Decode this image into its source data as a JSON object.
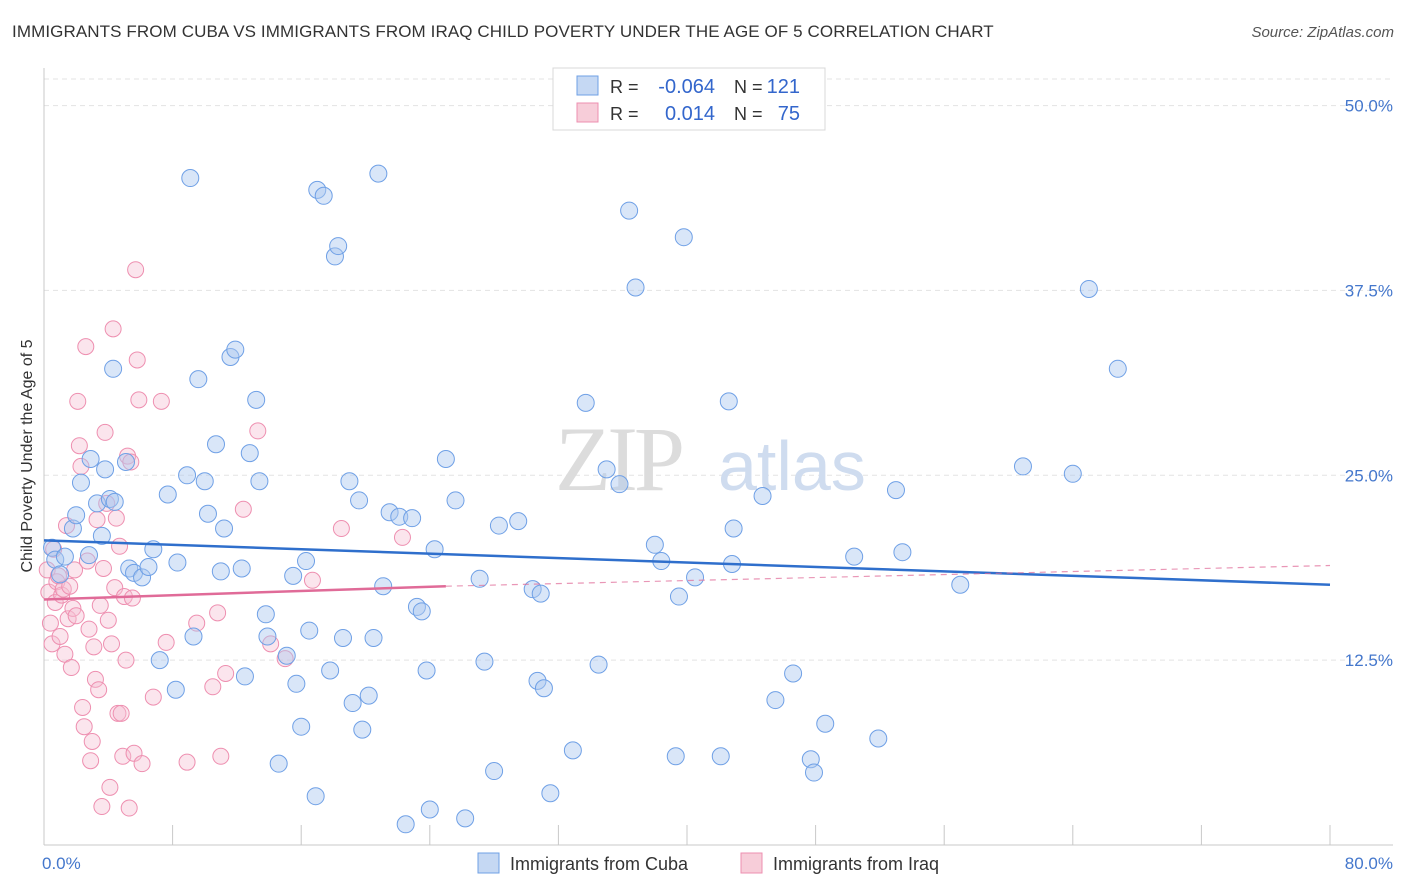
{
  "title": "IMMIGRANTS FROM CUBA VS IMMIGRANTS FROM IRAQ CHILD POVERTY UNDER THE AGE OF 5 CORRELATION CHART",
  "source": "Source: ZipAtlas.com",
  "colors": {
    "cuba": "#6fa0e6",
    "iraq": "#ee8fb0",
    "cuba_line": "#2f6fcc",
    "iraq_line": "#e06b98",
    "accent": "#3366cc"
  },
  "chart_data": {
    "type": "scatter",
    "title": "IMMIGRANTS FROM CUBA VS IMMIGRANTS FROM IRAQ CHILD POVERTY UNDER THE AGE OF 5 CORRELATION CHART",
    "xlabel": "",
    "ylabel": "Child Poverty Under the Age of 5",
    "xlim": [
      0,
      80
    ],
    "ylim": [
      0,
      52
    ],
    "x_tick_labels": [
      "0.0%",
      "80.0%"
    ],
    "y_ticks": [
      12.5,
      25.0,
      37.5,
      50.0
    ],
    "y_tick_labels": [
      "12.5%",
      "25.0%",
      "37.5%",
      "50.0%"
    ],
    "legend_position": "top-center",
    "stats": [
      {
        "r_label": "R =",
        "r_value": "-0.064",
        "n_label": "N =",
        "n_value": "121"
      },
      {
        "r_label": "R =",
        "r_value": "0.014",
        "n_label": "N =",
        "n_value": "75"
      }
    ],
    "series": [
      {
        "name": "Immigrants from Cuba",
        "trend": {
          "x": [
            0,
            80
          ],
          "y": [
            20.6,
            17.6
          ]
        },
        "points": [
          [
            0.5,
            20.1
          ],
          [
            0.7,
            19.3
          ],
          [
            1.0,
            18.3
          ],
          [
            1.3,
            19.5
          ],
          [
            1.8,
            21.4
          ],
          [
            2.0,
            22.3
          ],
          [
            2.3,
            24.5
          ],
          [
            2.8,
            19.6
          ],
          [
            2.9,
            26.1
          ],
          [
            3.3,
            23.1
          ],
          [
            3.6,
            20.9
          ],
          [
            3.8,
            25.4
          ],
          [
            4.1,
            23.4
          ],
          [
            4.3,
            32.2
          ],
          [
            4.4,
            23.2
          ],
          [
            5.1,
            25.9
          ],
          [
            5.3,
            18.7
          ],
          [
            5.6,
            18.4
          ],
          [
            6.1,
            18.1
          ],
          [
            6.5,
            18.8
          ],
          [
            6.8,
            20.0
          ],
          [
            7.2,
            12.5
          ],
          [
            7.7,
            23.7
          ],
          [
            8.2,
            10.5
          ],
          [
            8.3,
            19.1
          ],
          [
            8.9,
            25.0
          ],
          [
            9.1,
            45.1
          ],
          [
            9.3,
            14.1
          ],
          [
            9.6,
            31.5
          ],
          [
            10.0,
            24.6
          ],
          [
            10.2,
            22.4
          ],
          [
            10.7,
            27.1
          ],
          [
            11.0,
            18.5
          ],
          [
            11.2,
            21.4
          ],
          [
            11.6,
            33.0
          ],
          [
            11.9,
            33.5
          ],
          [
            12.3,
            18.7
          ],
          [
            12.5,
            11.4
          ],
          [
            12.8,
            26.5
          ],
          [
            13.2,
            30.1
          ],
          [
            13.4,
            24.6
          ],
          [
            13.8,
            15.6
          ],
          [
            13.9,
            14.1
          ],
          [
            14.6,
            5.5
          ],
          [
            15.1,
            12.8
          ],
          [
            15.5,
            18.2
          ],
          [
            15.7,
            10.9
          ],
          [
            16.0,
            8.0
          ],
          [
            16.3,
            19.2
          ],
          [
            16.5,
            14.5
          ],
          [
            16.9,
            3.3
          ],
          [
            17.0,
            44.3
          ],
          [
            17.4,
            43.9
          ],
          [
            17.8,
            11.8
          ],
          [
            18.1,
            39.8
          ],
          [
            18.3,
            40.5
          ],
          [
            18.6,
            14.0
          ],
          [
            19.0,
            24.6
          ],
          [
            19.2,
            9.6
          ],
          [
            19.6,
            23.3
          ],
          [
            19.8,
            7.8
          ],
          [
            20.2,
            10.1
          ],
          [
            20.5,
            14.0
          ],
          [
            20.8,
            45.4
          ],
          [
            21.1,
            17.5
          ],
          [
            21.5,
            22.5
          ],
          [
            22.1,
            22.2
          ],
          [
            22.5,
            1.4
          ],
          [
            22.9,
            22.1
          ],
          [
            23.2,
            16.1
          ],
          [
            23.5,
            15.8
          ],
          [
            23.8,
            11.8
          ],
          [
            24.0,
            2.4
          ],
          [
            24.3,
            20.0
          ],
          [
            25.0,
            26.1
          ],
          [
            25.6,
            23.3
          ],
          [
            26.2,
            1.8
          ],
          [
            27.1,
            18.0
          ],
          [
            27.4,
            12.4
          ],
          [
            28.0,
            5.0
          ],
          [
            28.3,
            21.6
          ],
          [
            29.5,
            21.9
          ],
          [
            30.4,
            17.3
          ],
          [
            30.7,
            11.1
          ],
          [
            30.9,
            17.0
          ],
          [
            31.1,
            10.6
          ],
          [
            31.5,
            3.5
          ],
          [
            32.9,
            6.4
          ],
          [
            33.7,
            29.9
          ],
          [
            34.5,
            12.2
          ],
          [
            35.0,
            25.4
          ],
          [
            35.8,
            24.4
          ],
          [
            36.4,
            42.9
          ],
          [
            36.8,
            37.7
          ],
          [
            38.0,
            20.3
          ],
          [
            38.4,
            19.2
          ],
          [
            39.3,
            6.0
          ],
          [
            39.5,
            16.8
          ],
          [
            39.8,
            41.1
          ],
          [
            40.5,
            18.1
          ],
          [
            42.1,
            6.0
          ],
          [
            42.6,
            30.0
          ],
          [
            42.8,
            19.0
          ],
          [
            42.9,
            21.4
          ],
          [
            44.7,
            23.6
          ],
          [
            45.5,
            9.8
          ],
          [
            46.6,
            11.6
          ],
          [
            47.7,
            5.8
          ],
          [
            47.9,
            4.9
          ],
          [
            48.6,
            8.2
          ],
          [
            50.4,
            19.5
          ],
          [
            51.9,
            7.2
          ],
          [
            53.0,
            24.0
          ],
          [
            53.4,
            19.8
          ],
          [
            57.0,
            17.6
          ],
          [
            60.9,
            25.6
          ],
          [
            64.0,
            25.1
          ],
          [
            65.0,
            37.6
          ],
          [
            66.8,
            32.2
          ]
        ]
      },
      {
        "name": "Immigrants from Iraq",
        "trend": {
          "x": [
            0,
            25
          ],
          "y": [
            16.6,
            17.5
          ]
        },
        "trend_extension": {
          "x": [
            25,
            80
          ],
          "y": [
            17.5,
            18.9
          ]
        },
        "points": [
          [
            0.2,
            18.6
          ],
          [
            0.3,
            17.1
          ],
          [
            0.4,
            15.0
          ],
          [
            0.5,
            13.6
          ],
          [
            0.6,
            20.0
          ],
          [
            0.7,
            16.4
          ],
          [
            0.8,
            17.8
          ],
          [
            0.9,
            18.2
          ],
          [
            1.0,
            14.1
          ],
          [
            1.1,
            16.9
          ],
          [
            1.2,
            17.3
          ],
          [
            1.3,
            12.9
          ],
          [
            1.4,
            21.6
          ],
          [
            1.5,
            15.3
          ],
          [
            1.6,
            17.5
          ],
          [
            1.7,
            12.0
          ],
          [
            1.8,
            16.0
          ],
          [
            1.9,
            18.6
          ],
          [
            2.0,
            15.5
          ],
          [
            2.1,
            30.0
          ],
          [
            2.2,
            27.0
          ],
          [
            2.3,
            25.6
          ],
          [
            2.4,
            9.3
          ],
          [
            2.5,
            8.0
          ],
          [
            2.6,
            33.7
          ],
          [
            2.7,
            19.2
          ],
          [
            2.8,
            14.6
          ],
          [
            2.9,
            5.7
          ],
          [
            3.0,
            7.0
          ],
          [
            3.1,
            13.4
          ],
          [
            3.2,
            11.2
          ],
          [
            3.3,
            22.0
          ],
          [
            3.4,
            10.5
          ],
          [
            3.5,
            16.2
          ],
          [
            3.6,
            2.6
          ],
          [
            3.7,
            18.7
          ],
          [
            3.8,
            27.9
          ],
          [
            3.9,
            23.1
          ],
          [
            4.0,
            15.2
          ],
          [
            4.1,
            3.9
          ],
          [
            4.2,
            13.6
          ],
          [
            4.3,
            34.9
          ],
          [
            4.4,
            17.4
          ],
          [
            4.5,
            22.1
          ],
          [
            4.6,
            8.9
          ],
          [
            4.7,
            20.2
          ],
          [
            4.8,
            8.9
          ],
          [
            4.9,
            6.0
          ],
          [
            5.0,
            16.8
          ],
          [
            5.1,
            12.5
          ],
          [
            5.2,
            26.3
          ],
          [
            5.3,
            2.5
          ],
          [
            5.4,
            25.9
          ],
          [
            5.5,
            16.7
          ],
          [
            5.6,
            6.2
          ],
          [
            5.7,
            38.9
          ],
          [
            5.8,
            32.8
          ],
          [
            5.9,
            30.1
          ],
          [
            6.1,
            5.5
          ],
          [
            6.8,
            10.0
          ],
          [
            7.3,
            30.0
          ],
          [
            7.6,
            13.7
          ],
          [
            8.9,
            5.6
          ],
          [
            9.5,
            15.0
          ],
          [
            10.5,
            10.7
          ],
          [
            10.8,
            15.7
          ],
          [
            11.0,
            6.0
          ],
          [
            11.3,
            11.6
          ],
          [
            12.4,
            22.7
          ],
          [
            13.3,
            28.0
          ],
          [
            14.1,
            13.6
          ],
          [
            15.0,
            12.6
          ],
          [
            16.7,
            17.9
          ],
          [
            18.5,
            21.4
          ],
          [
            22.3,
            20.8
          ]
        ]
      }
    ]
  }
}
